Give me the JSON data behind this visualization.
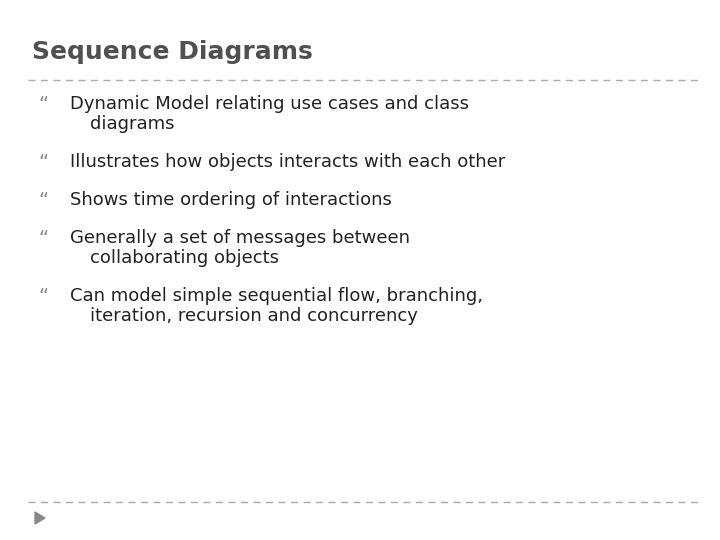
{
  "title": "Sequence Diagrams",
  "title_color": "#505050",
  "title_fontsize": 18,
  "title_fontweight": "bold",
  "background_color": "#ffffff",
  "separator_color": "#aaaaaa",
  "bullet_symbol": "“",
  "bullet_color": "#888888",
  "bullet_fontsize": 14,
  "text_color": "#222222",
  "text_fontsize": 13,
  "items": [
    {
      "line1": "Dynamic Model relating use cases and class",
      "line2": "diagrams"
    },
    {
      "line1": "Illustrates how objects interacts with each other",
      "line2": null
    },
    {
      "line1": "Shows time ordering of interactions",
      "line2": null
    },
    {
      "line1": "Generally a set of messages between",
      "line2": "collaborating objects"
    },
    {
      "line1": "Can model simple sequential flow, branching,",
      "line2": "iteration, recursion and concurrency"
    }
  ],
  "bottom_separator_color": "#aaaaaa",
  "arrow_color": "#888888",
  "figwidth": 7.2,
  "figheight": 5.4,
  "dpi": 100
}
